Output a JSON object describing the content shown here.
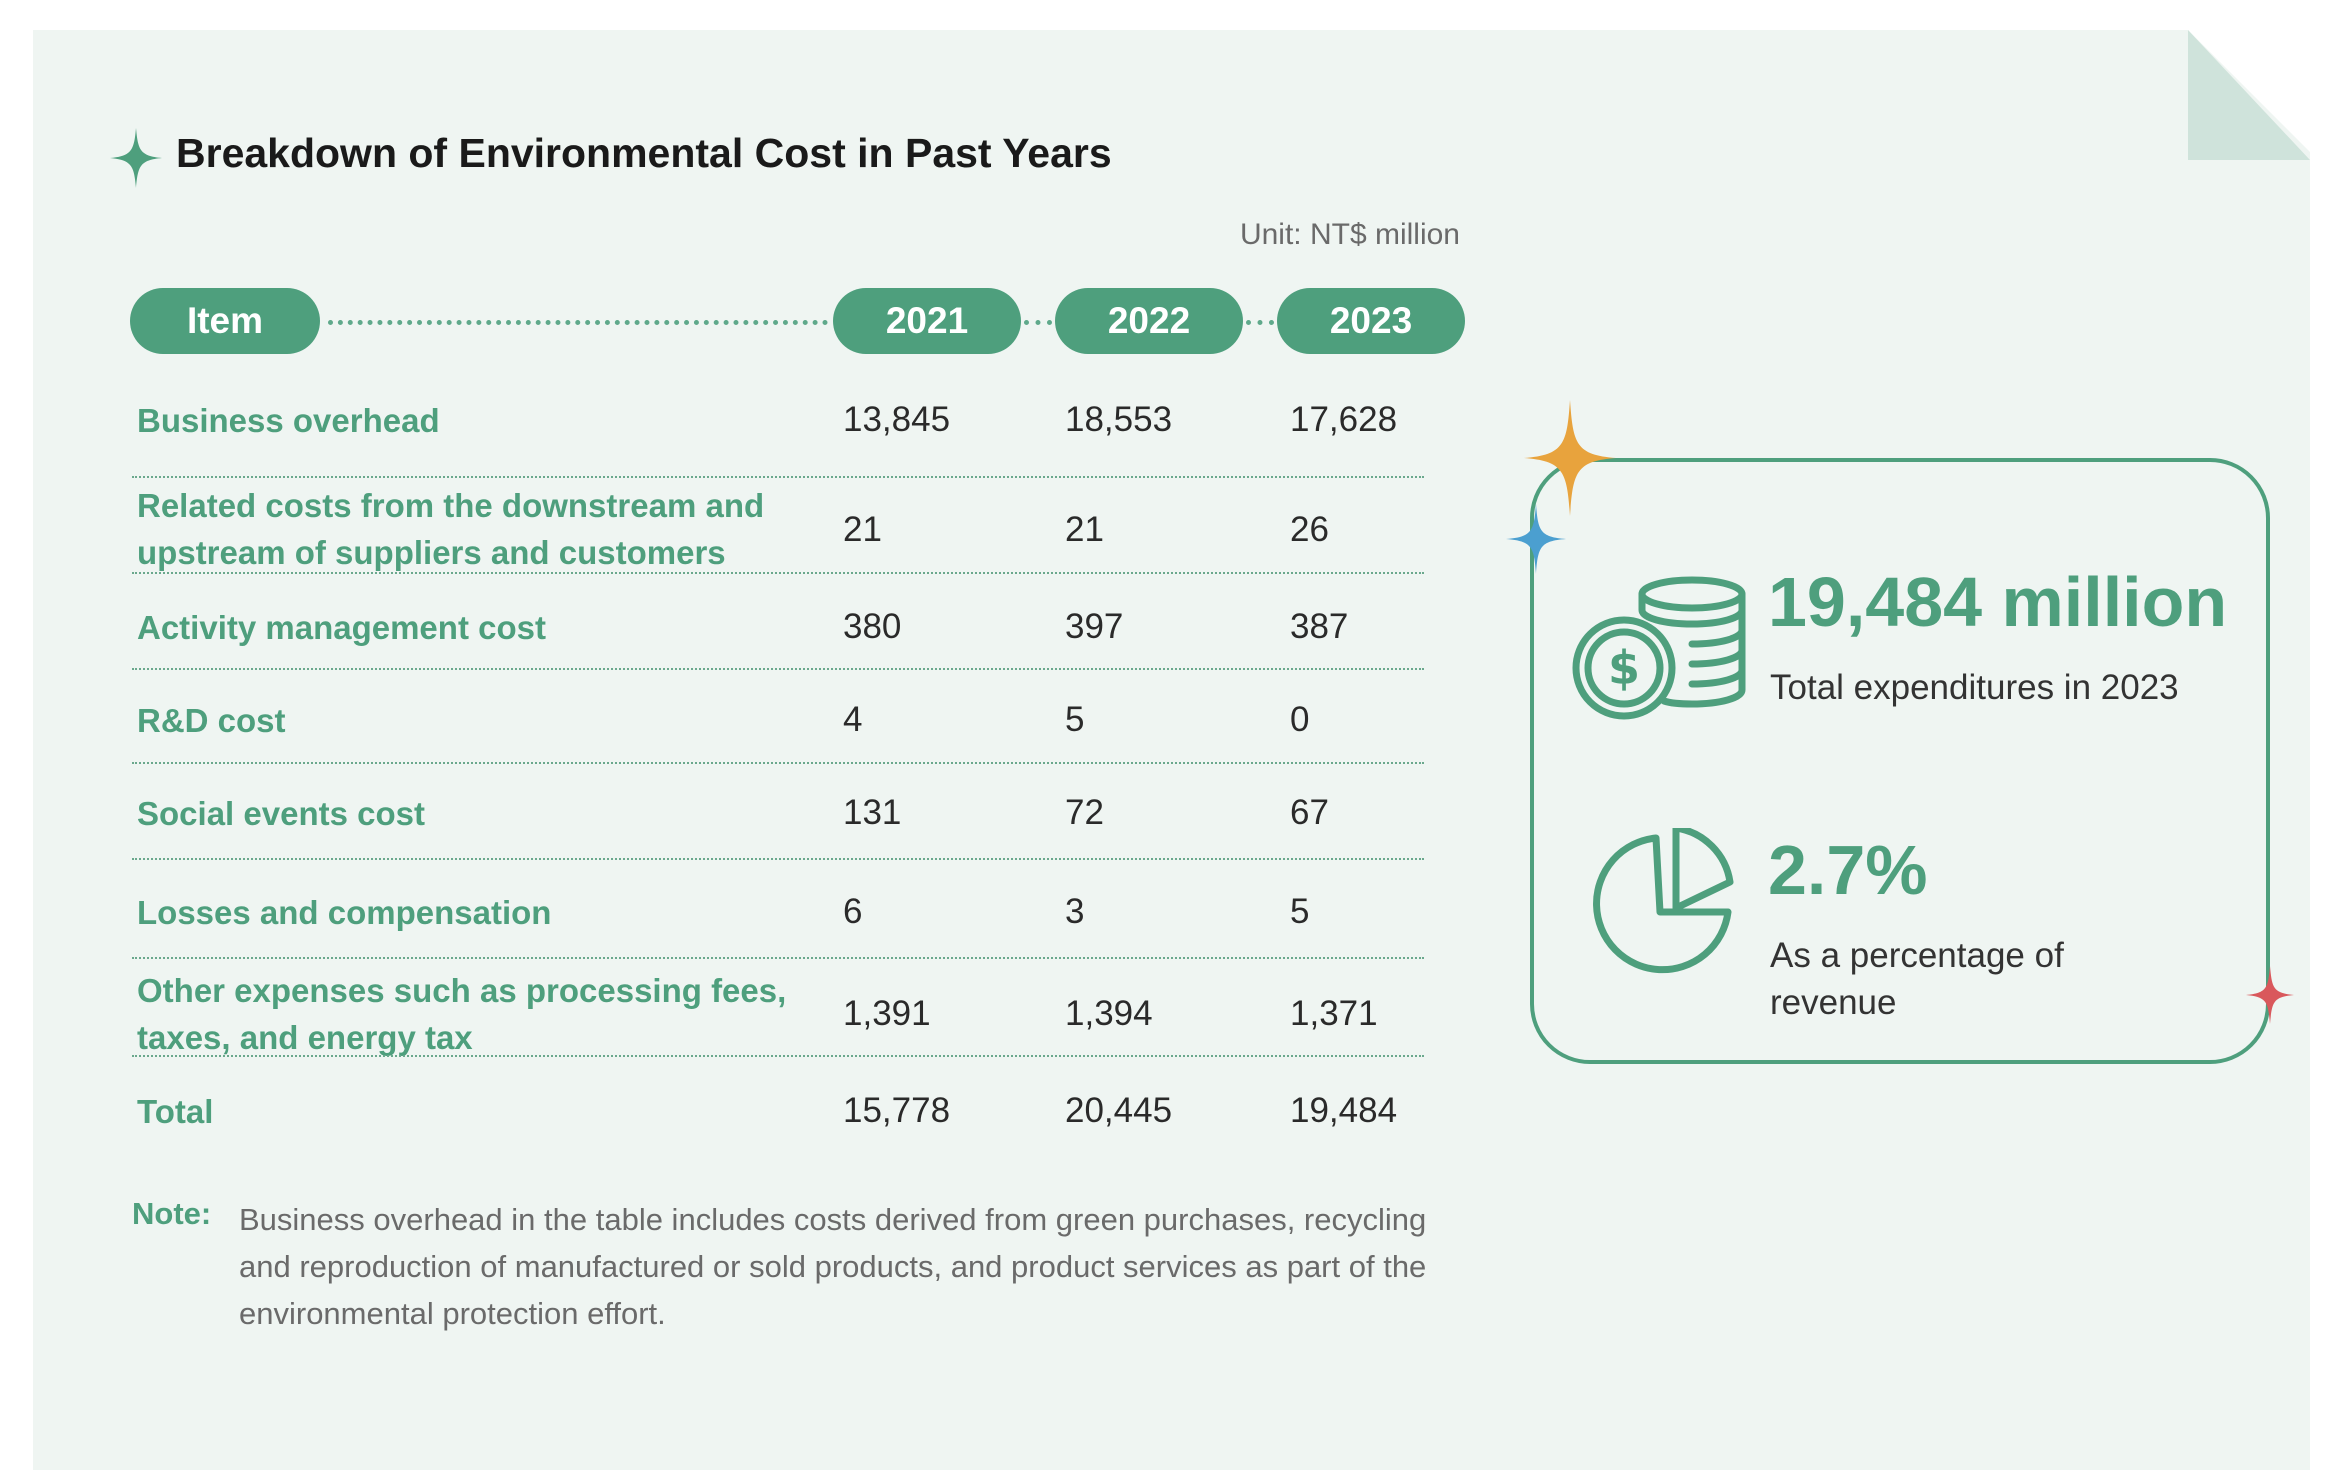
{
  "title": "Breakdown of Environmental Cost in Past Years",
  "unit": "Unit: NT$ million",
  "header": {
    "item": "Item",
    "years": [
      "2021",
      "2022",
      "2023"
    ]
  },
  "rows": [
    {
      "item": "Business overhead",
      "values": [
        "13,845",
        "18,553",
        "17,628"
      ]
    },
    {
      "item": "Related costs from the downstream and upstream of suppliers and customers",
      "values": [
        "21",
        "21",
        "26"
      ]
    },
    {
      "item": "Activity management cost",
      "values": [
        "380",
        "397",
        "387"
      ]
    },
    {
      "item": "R&D cost",
      "values": [
        "4",
        "5",
        "0"
      ]
    },
    {
      "item": "Social events cost",
      "values": [
        "131",
        "72",
        "67"
      ]
    },
    {
      "item": "Losses and compensation",
      "values": [
        "6",
        "3",
        "5"
      ]
    },
    {
      "item": "Other expenses such as processing fees, taxes, and energy tax",
      "values": [
        "1,391",
        "1,394",
        "1,371"
      ]
    },
    {
      "item": "Total",
      "values": [
        "15,778",
        "20,445",
        "19,484"
      ]
    }
  ],
  "note": {
    "label": "Note:",
    "text": "Business overhead in the table includes costs derived from green purchases, recycling and reproduction of manufactured or sold products, and product services as part of the environmental protection effort."
  },
  "highlights": {
    "total": {
      "value": "19,484 million",
      "label": "Total expenditures in 2023",
      "icon": "coins-dollar-icon"
    },
    "percentage": {
      "value": "2.7%",
      "label": "As a percentage of revenue",
      "icon": "pie-chart-icon"
    }
  },
  "colors": {
    "accent": "#4e9f7d",
    "background": "#eff5f2",
    "fold": "#cfe3db",
    "star_orange": "#e8a33d",
    "star_blue": "#4b9fd0",
    "star_red": "#d9585c"
  }
}
